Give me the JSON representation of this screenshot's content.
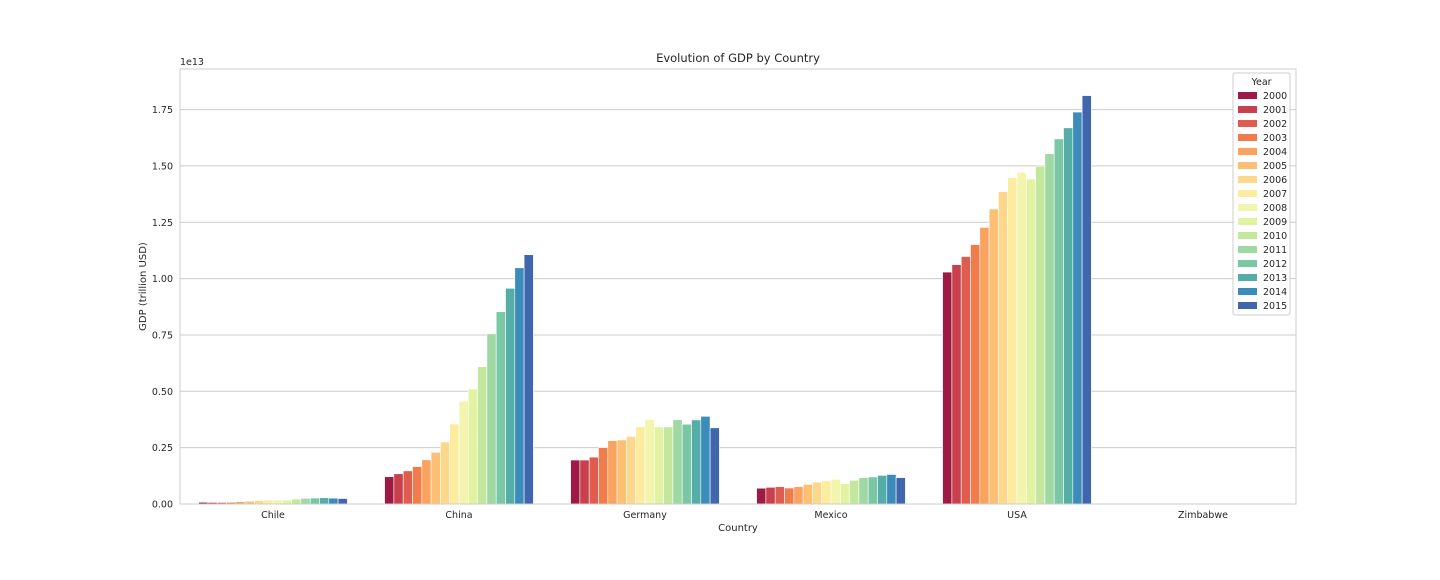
{
  "chart_data": {
    "type": "bar",
    "title": "Evolution of GDP by Country",
    "xlabel": "Country",
    "ylabel": "GDP (trillion USD)",
    "offset_text": "1e13",
    "ylim": [
      0,
      1.93
    ],
    "y_ticks": [
      "0.00",
      "0.25",
      "0.50",
      "0.75",
      "1.00",
      "1.25",
      "1.50",
      "1.75"
    ],
    "y_tick_values": [
      0,
      0.25,
      0.5,
      0.75,
      1.0,
      1.25,
      1.5,
      1.75
    ],
    "grid": true,
    "legend_title": "Year",
    "legend_position": "top-right",
    "categories": [
      "Chile",
      "China",
      "Germany",
      "Mexico",
      "USA",
      "Zimbabwe"
    ],
    "series": [
      {
        "name": "2000",
        "color": "#9e1a44",
        "values": [
          0.0077,
          0.121,
          0.195,
          0.07,
          1.029,
          0
        ]
      },
      {
        "name": "2001",
        "color": "#c8404d",
        "values": [
          0.0071,
          0.134,
          0.195,
          0.074,
          1.062,
          0
        ]
      },
      {
        "name": "2002",
        "color": "#e05c4f",
        "values": [
          0.007,
          0.147,
          0.208,
          0.077,
          1.098,
          0
        ]
      },
      {
        "name": "2003",
        "color": "#f07c4c",
        "values": [
          0.0076,
          0.166,
          0.25,
          0.071,
          1.151,
          0
        ]
      },
      {
        "name": "2004",
        "color": "#f9a35f",
        "values": [
          0.0101,
          0.196,
          0.281,
          0.077,
          1.227,
          0
        ]
      },
      {
        "name": "2005",
        "color": "#fdbf74",
        "values": [
          0.0123,
          0.229,
          0.284,
          0.087,
          1.309,
          0
        ]
      },
      {
        "name": "2006",
        "color": "#fdd88b",
        "values": [
          0.0155,
          0.275,
          0.3,
          0.097,
          1.386,
          0
        ]
      },
      {
        "name": "2007",
        "color": "#fbeca0",
        "values": [
          0.0173,
          0.355,
          0.343,
          0.104,
          1.448,
          0
        ]
      },
      {
        "name": "2008",
        "color": "#f3f5ae",
        "values": [
          0.018,
          0.456,
          0.375,
          0.11,
          1.472,
          0
        ]
      },
      {
        "name": "2009",
        "color": "#e1f2a0",
        "values": [
          0.0173,
          0.51,
          0.342,
          0.09,
          1.442,
          0
        ]
      },
      {
        "name": "2010",
        "color": "#c4e79e",
        "values": [
          0.0218,
          0.609,
          0.342,
          0.105,
          1.499,
          0
        ]
      },
      {
        "name": "2011",
        "color": "#a0d8a4",
        "values": [
          0.0252,
          0.755,
          0.374,
          0.117,
          1.554,
          0
        ]
      },
      {
        "name": "2012",
        "color": "#79c7a4",
        "values": [
          0.0265,
          0.853,
          0.354,
          0.12,
          1.62,
          0
        ]
      },
      {
        "name": "2013",
        "color": "#55ada8",
        "values": [
          0.0278,
          0.957,
          0.373,
          0.127,
          1.669,
          0
        ]
      },
      {
        "name": "2014",
        "color": "#3b8cba",
        "values": [
          0.026,
          1.048,
          0.389,
          0.131,
          1.739,
          0
        ]
      },
      {
        "name": "2015",
        "color": "#4066ad",
        "values": [
          0.0243,
          1.106,
          0.338,
          0.117,
          1.812,
          0
        ]
      }
    ]
  }
}
